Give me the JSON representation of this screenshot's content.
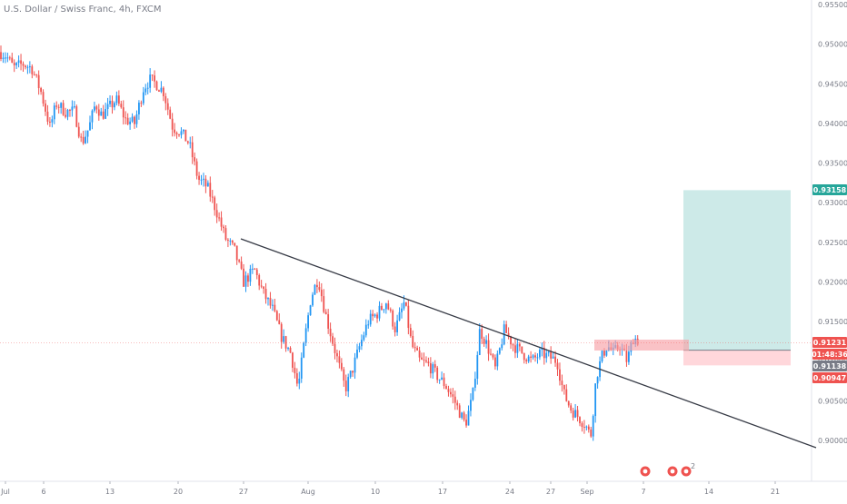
{
  "title": "U.S. Dollar / Swiss Franc, 4h, FXCM",
  "chart_data": {
    "type": "candlestick",
    "instrument": "U.S. Dollar / Swiss Franc",
    "timeframe": "4h",
    "source": "FXCM",
    "ylim": [
      0.895,
      0.955
    ],
    "y_ticks": [
      "0.95500",
      "0.95000",
      "0.94500",
      "0.94000",
      "0.93500",
      "0.93000",
      "0.92500",
      "0.92000",
      "0.91500",
      "0.91000",
      "0.90500",
      "0.90000"
    ],
    "x_ticks": [
      "Jul",
      "6",
      "13",
      "20",
      "27",
      "Aug",
      "10",
      "17",
      "24",
      "27",
      "Sep",
      "7",
      "14",
      "21"
    ],
    "colors": {
      "up": "#2196f3",
      "down": "#ef5350",
      "profit_zone": "#b2dfdb",
      "loss_zone": "#ffcdd2",
      "trendline": "#363a45",
      "entry_zone": "#f7a1a8"
    },
    "price_tags": [
      {
        "label": "0.93158",
        "value": 0.93158,
        "color": "#26a69a"
      },
      {
        "label": "0.91231",
        "value": 0.91231,
        "color": "#ef5350"
      },
      {
        "label": "01:48:36",
        "value": 0.9119,
        "color": "#ef5350"
      },
      {
        "label": "0.91138",
        "value": 0.91138,
        "color": "#787b86"
      },
      {
        "label": "0.90947",
        "value": 0.90947,
        "color": "#ef5350"
      }
    ],
    "position": {
      "entry": 0.91138,
      "target": 0.93158,
      "stop": 0.90947
    },
    "trendline": {
      "from": [
        0.9256,
        0
      ],
      "to": [
        0.8992,
        1
      ]
    },
    "event_badges": [
      {
        "label": "2"
      }
    ]
  }
}
